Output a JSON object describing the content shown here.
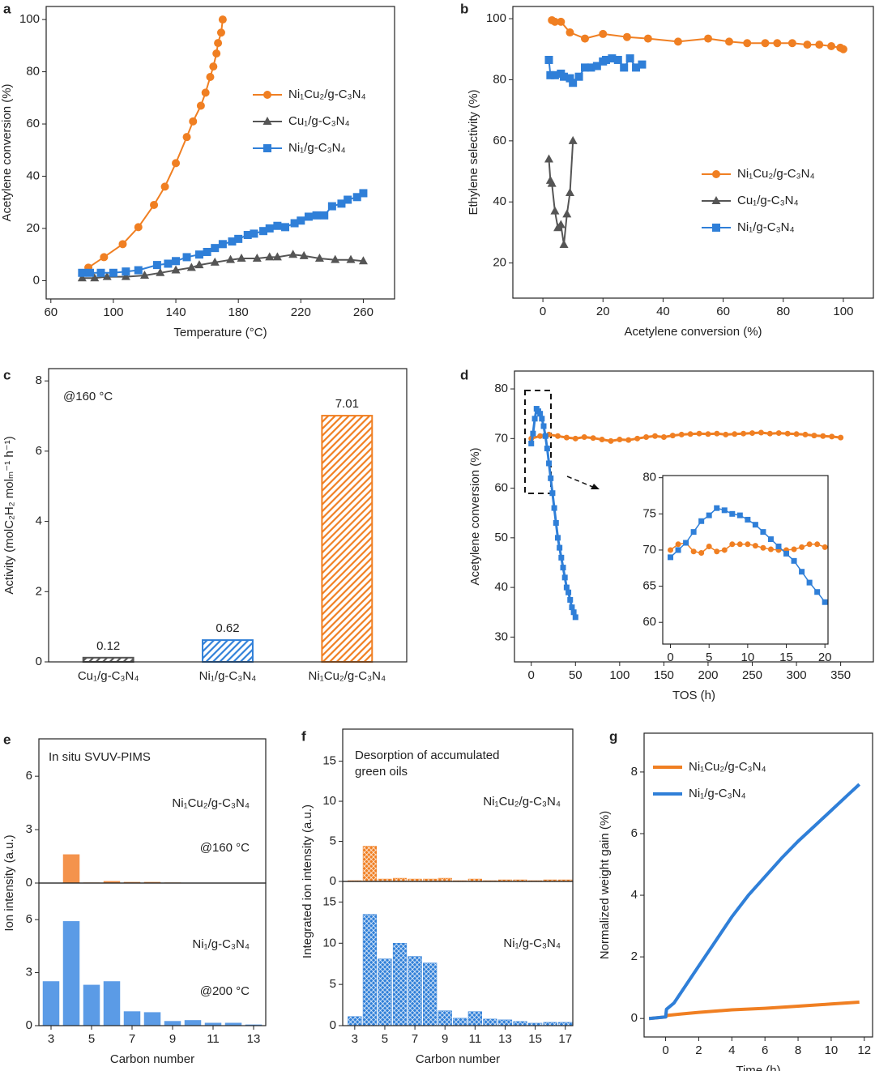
{
  "chart_data": [
    {
      "type": "line",
      "label": "a",
      "xlabel": "Temperature (°C)",
      "ylabel": "Acetylene conversion (%)",
      "xlim": [
        57,
        280
      ],
      "ylim": [
        -7,
        105
      ],
      "xticks": [
        60,
        100,
        140,
        180,
        220,
        260
      ],
      "yticks": [
        0,
        20,
        40,
        60,
        80,
        100
      ],
      "legend": "center right",
      "series": [
        {
          "name": "Ni₁Cu₂/g-C₃N₄",
          "color": "#f07f22",
          "marker": "circle",
          "x": [
            84,
            94,
            106,
            116,
            126,
            133,
            140,
            147,
            151,
            156,
            159,
            162,
            164,
            166,
            167,
            169,
            170
          ],
          "values": [
            5,
            9,
            14,
            20.5,
            29,
            36,
            45,
            55,
            61,
            67,
            72,
            78,
            82,
            87,
            91,
            95,
            100
          ]
        },
        {
          "name": "Cu₁/g-C₃N₄",
          "color": "#555555",
          "marker": "triangle",
          "x": [
            80,
            88,
            96,
            108,
            120,
            130,
            140,
            150,
            155,
            165,
            175,
            182,
            192,
            200,
            205,
            215,
            222,
            232,
            242,
            252,
            260
          ],
          "values": [
            1,
            1,
            1.5,
            1.5,
            2,
            3,
            4,
            5,
            6,
            7,
            8,
            8.5,
            8.5,
            9,
            9,
            10,
            9.5,
            8.5,
            8,
            8,
            7.5
          ]
        },
        {
          "name": "Ni₁/g-C₃N₄",
          "color": "#2f7fd8",
          "marker": "square",
          "x": [
            80,
            85,
            92,
            100,
            108,
            116,
            128,
            135,
            140,
            147,
            155,
            160,
            165,
            170,
            176,
            180,
            186,
            190,
            196,
            200,
            205,
            210,
            216,
            220,
            225,
            230,
            235,
            240,
            246,
            250,
            256,
            260
          ],
          "values": [
            3,
            3,
            3,
            3,
            3.5,
            4,
            6,
            6.5,
            7.5,
            9,
            10,
            11,
            12.5,
            14,
            15,
            16,
            17.5,
            18,
            19,
            20,
            21,
            20.5,
            22,
            23,
            24.5,
            25,
            25,
            28.5,
            29.5,
            31,
            32,
            33.5
          ]
        }
      ]
    },
    {
      "type": "line",
      "label": "b",
      "xlabel": "Acetylene conversion (%)",
      "ylabel": "Ethylene selectivity (%)",
      "xlim": [
        -10,
        110
      ],
      "ylim": [
        8.5,
        104
      ],
      "xticks": [
        0,
        20,
        40,
        60,
        80,
        100
      ],
      "yticks": [
        20,
        40,
        60,
        80,
        100
      ],
      "legend": "lower right",
      "series": [
        {
          "name": "Ni₁Cu₂/g-C₃N₄",
          "color": "#f07f22",
          "marker": "circle",
          "x": [
            3,
            4,
            6,
            9,
            14,
            20,
            28,
            35,
            45,
            55,
            62,
            68,
            74,
            78,
            83,
            88,
            92,
            96,
            99,
            100
          ],
          "values": [
            99.5,
            99,
            99,
            95.5,
            93.5,
            95,
            94,
            93.5,
            92.5,
            93.5,
            92.5,
            92,
            92,
            92,
            92,
            91.5,
            91.5,
            91,
            90.5,
            90
          ]
        },
        {
          "name": "Cu₁/g-C₃N₄",
          "color": "#555555",
          "marker": "triangle",
          "x": [
            2,
            2.5,
            3,
            4,
            5,
            6,
            7,
            8,
            9,
            10
          ],
          "values": [
            54,
            47,
            46,
            37,
            31.5,
            32.5,
            26,
            36,
            43,
            60
          ]
        },
        {
          "name": "Ni₁/g-C₃N₄",
          "color": "#2f7fd8",
          "marker": "square",
          "x": [
            2,
            2.5,
            4,
            6,
            7,
            9,
            10,
            12,
            14,
            16,
            18,
            20,
            21,
            23,
            25,
            27,
            29,
            31,
            33
          ],
          "values": [
            86.5,
            81.5,
            81.5,
            82,
            81,
            80.5,
            79,
            81,
            84,
            84,
            84.5,
            86,
            86.5,
            87,
            86.5,
            84,
            87,
            84,
            85
          ]
        }
      ]
    },
    {
      "type": "bar",
      "label": "c",
      "ylabel": "Activity (molC₂H₂ molₘ⁻¹ h⁻¹)",
      "annotations": [
        "@160 °C"
      ],
      "categories": [
        "Cu₁/g-C₃N₄",
        "Ni₁/g-C₃N₄",
        "Ni₁Cu₂/g-C₃N₄"
      ],
      "values": [
        0.12,
        0.62,
        7.01
      ],
      "colors": [
        "#555555",
        "#2f7fd8",
        "#f07f22"
      ],
      "fill_pattern": "diagonal",
      "ylim": [
        0,
        8.35
      ],
      "yticks": [
        0,
        2,
        4,
        6,
        8
      ]
    },
    {
      "type": "line",
      "label": "d",
      "xlabel": "TOS (h)",
      "ylabel": "Acetylene conversion (%)",
      "xlim": [
        -19,
        387
      ],
      "ylim": [
        25,
        83.6
      ],
      "xticks": [
        0,
        50,
        100,
        150,
        200,
        250,
        300,
        350
      ],
      "yticks": [
        30,
        40,
        50,
        60,
        70,
        80
      ],
      "series": [
        {
          "color": "#f07f22",
          "marker": "circle",
          "x": [
            0,
            10,
            20,
            30,
            40,
            50,
            60,
            70,
            80,
            90,
            100,
            110,
            120,
            130,
            140,
            150,
            160,
            170,
            180,
            190,
            200,
            210,
            220,
            230,
            240,
            250,
            260,
            270,
            280,
            290,
            300,
            310,
            320,
            330,
            340,
            350
          ],
          "values": [
            70,
            70.5,
            70.8,
            70.5,
            70.2,
            70,
            70.3,
            70.1,
            69.8,
            69.5,
            69.8,
            69.7,
            70,
            70.3,
            70.5,
            70.3,
            70.6,
            70.8,
            70.9,
            71,
            70.9,
            71,
            70.8,
            70.9,
            71,
            71.1,
            71.2,
            71,
            71.1,
            71,
            70.9,
            70.8,
            70.6,
            70.5,
            70.4,
            70.2
          ]
        },
        {
          "color": "#2f7fd8",
          "marker": "square",
          "x": [
            0,
            2,
            4,
            6,
            8,
            10,
            12,
            14,
            16,
            18,
            20,
            22,
            24,
            26,
            28,
            30,
            32,
            34,
            36,
            38,
            40,
            42,
            44,
            46,
            48,
            50
          ],
          "values": [
            69,
            71,
            74,
            76,
            75.5,
            75,
            74,
            72.5,
            70.5,
            68,
            65,
            62,
            59,
            56,
            53,
            50,
            48,
            46,
            44,
            42,
            40,
            39,
            37.5,
            36,
            35,
            34
          ]
        }
      ]
    },
    {
      "type": "line",
      "xlim": [
        -1,
        20.4
      ],
      "ylim": [
        57,
        80.3
      ],
      "xticks": [
        0,
        5,
        10,
        15,
        20
      ],
      "yticks": [
        60,
        65,
        70,
        75,
        80
      ],
      "series": [
        {
          "color": "#f07f22",
          "marker": "circle",
          "x": [
            0,
            1,
            2,
            3,
            4,
            5,
            6,
            7,
            8,
            9,
            10,
            11,
            12,
            13,
            14,
            15,
            16,
            17,
            18,
            19,
            20
          ],
          "values": [
            70,
            70.8,
            71,
            69.8,
            69.6,
            70.5,
            69.8,
            70,
            70.8,
            70.8,
            70.8,
            70.6,
            70.3,
            70.1,
            70,
            70,
            70.1,
            70.4,
            70.8,
            70.8,
            70.4
          ]
        },
        {
          "color": "#2f7fd8",
          "marker": "square",
          "x": [
            0,
            1,
            2,
            3,
            4,
            5,
            6,
            7,
            8,
            9,
            10,
            11,
            12,
            13,
            14,
            15,
            16,
            17,
            18,
            19,
            20
          ],
          "values": [
            69,
            70,
            71,
            72.5,
            74,
            74.8,
            75.8,
            75.5,
            75,
            74.8,
            74.2,
            73.5,
            72.5,
            71.5,
            70.5,
            69.5,
            68.5,
            67,
            65.5,
            64.2,
            62.8
          ]
        }
      ]
    },
    {
      "type": "bar",
      "label": "e",
      "ylabel": "Ion intensity (a.u.)",
      "annotations": [
        "In situ SVUV-PIMS",
        "Ni₁Cu₂/g-C₃N₄",
        "@160 °C"
      ],
      "x": [
        3,
        4,
        5,
        6,
        7,
        8,
        9,
        10,
        11,
        12,
        13
      ],
      "values": [
        0,
        1.6,
        0.02,
        0.1,
        0.05,
        0.05,
        0.02,
        0.01,
        0.01,
        0.01,
        0.01
      ],
      "color": "#f4934c",
      "xlim": [
        2.4,
        13.6
      ],
      "ylim": [
        0,
        8.1
      ],
      "yticks": [
        0,
        3,
        6
      ]
    },
    {
      "type": "bar",
      "xlabel": "Carbon number",
      "annotations": [
        "Ni₁/g-C₃N₄",
        "@200 °C"
      ],
      "x": [
        3,
        4,
        5,
        6,
        7,
        8,
        9,
        10,
        11,
        12,
        13
      ],
      "values": [
        2.5,
        5.9,
        2.3,
        2.5,
        0.8,
        0.75,
        0.25,
        0.3,
        0.15,
        0.15,
        0.05
      ],
      "color": "#5b9be6",
      "xlim": [
        2.4,
        13.6
      ],
      "ylim": [
        0,
        8.07
      ],
      "xticks": [
        3,
        5,
        7,
        9,
        11,
        13
      ],
      "yticks": [
        0,
        3,
        6
      ]
    },
    {
      "type": "bar",
      "label": "f",
      "ylabel": "Integrated ion intensity (a.u.)",
      "annotations": [
        "Desorption of accumulated",
        "green oils",
        "Ni₁Cu₂/g-C₃N₄"
      ],
      "x": [
        3,
        4,
        5,
        6,
        7,
        8,
        9,
        10,
        11,
        12,
        13,
        14,
        15,
        16,
        17
      ],
      "values": [
        0.1,
        4.4,
        0.3,
        0.4,
        0.3,
        0.3,
        0.4,
        0.1,
        0.3,
        0.1,
        0.2,
        0.2,
        0.1,
        0.2,
        0.2
      ],
      "color": "#f07f22",
      "fill_pattern": "crosshatch",
      "xlim": [
        2.2,
        17.5
      ],
      "ylim": [
        0,
        19
      ],
      "yticks": [
        0,
        5,
        10,
        15
      ]
    },
    {
      "type": "bar",
      "xlabel": "Carbon number",
      "annotations": [
        "Ni₁/g-C₃N₄"
      ],
      "x": [
        3,
        4,
        5,
        6,
        7,
        8,
        9,
        10,
        11,
        12,
        13,
        14,
        15,
        16,
        17
      ],
      "values": [
        1.1,
        13.5,
        8.1,
        10,
        8.4,
        7.6,
        1.8,
        0.9,
        1.7,
        0.8,
        0.7,
        0.5,
        0.3,
        0.4,
        0.4
      ],
      "color": "#2f7fd8",
      "fill_pattern": "crosshatch",
      "xlim": [
        2.2,
        17.5
      ],
      "ylim": [
        0,
        17.5
      ],
      "xticks": [
        3,
        5,
        7,
        9,
        11,
        13,
        15,
        17
      ],
      "yticks": [
        0,
        5,
        10,
        15
      ]
    },
    {
      "type": "line",
      "label": "g",
      "xlabel": "Time (h)",
      "ylabel": "Normalized weight gain (%)",
      "legend": "upper left",
      "xlim": [
        -1.3,
        12.5
      ],
      "ylim": [
        -0.6,
        9.26
      ],
      "xticks": [
        0,
        2,
        4,
        6,
        8,
        10,
        12
      ],
      "yticks": [
        0,
        2,
        4,
        6,
        8
      ],
      "series": [
        {
          "name": "Ni₁Cu₂/g-C₃N₄",
          "color": "#f07f22",
          "x": [
            -1,
            0,
            0.1,
            1,
            2,
            4,
            6,
            8,
            10,
            11.7
          ],
          "values": [
            0,
            0.05,
            0.1,
            0.15,
            0.2,
            0.28,
            0.33,
            0.4,
            0.47,
            0.53
          ]
        },
        {
          "name": "Ni₁/g-C₃N₄",
          "color": "#2f7fd8",
          "x": [
            -1,
            0,
            0.05,
            0.5,
            1,
            2,
            3,
            4,
            5,
            6,
            7,
            8,
            9,
            10,
            11,
            11.7
          ],
          "values": [
            0,
            0.05,
            0.3,
            0.5,
            0.9,
            1.7,
            2.5,
            3.3,
            4.0,
            4.6,
            5.2,
            5.75,
            6.25,
            6.75,
            7.25,
            7.6
          ]
        }
      ]
    }
  ]
}
